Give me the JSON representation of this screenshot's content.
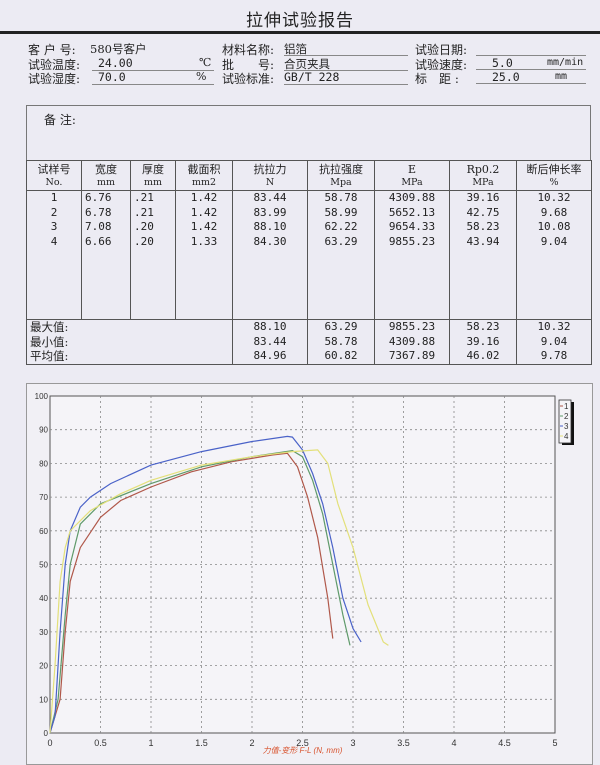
{
  "title": "拉伸试验报告",
  "info": {
    "customer_label": "客 户 号:",
    "customer": "580号客户",
    "material_label": "材料名称:",
    "material": "铝箔",
    "date_label": "试验日期:",
    "date": "",
    "temp_label": "试验温度:",
    "temp": "24.00",
    "temp_unit": "℃",
    "batch_label": "批　　号:",
    "batch": "合页夹具",
    "speed_label": "试验速度:",
    "speed": "5.0",
    "speed_unit": "mm/min",
    "humidity_label": "试验湿度:",
    "humidity": "70.0",
    "humidity_unit": "%",
    "standard_label": "试验标准:",
    "standard": "GB/T 228",
    "gauge_label": "标　距 :",
    "gauge": "25.0",
    "gauge_unit": "mm"
  },
  "remarks_label": "备 注:",
  "table": {
    "headers": [
      {
        "name": "试样号",
        "unit": "No."
      },
      {
        "name": "宽度",
        "unit": "mm"
      },
      {
        "name": "厚度",
        "unit": "mm"
      },
      {
        "name": "截面积",
        "unit": "mm2"
      },
      {
        "name": "抗拉力",
        "unit": "N"
      },
      {
        "name": "抗拉强度",
        "unit": "Mpa"
      },
      {
        "name": "E",
        "unit": "MPa"
      },
      {
        "name": "Rp0.2",
        "unit": "MPa"
      },
      {
        "name": "断后伸长率",
        "unit": "%"
      }
    ],
    "rows": [
      [
        "1",
        "6.76",
        ".21",
        "1.42",
        "83.44",
        "58.78",
        "4309.88",
        "39.16",
        "10.32"
      ],
      [
        "2",
        "6.78",
        ".21",
        "1.42",
        "83.99",
        "58.99",
        "5652.13",
        "42.75",
        "9.68"
      ],
      [
        "3",
        "7.08",
        ".20",
        "1.42",
        "88.10",
        "62.22",
        "9654.33",
        "58.23",
        "10.08"
      ],
      [
        "4",
        "6.66",
        ".20",
        "1.33",
        "84.30",
        "63.29",
        "9855.23",
        "43.94",
        "9.04"
      ]
    ],
    "stats": [
      {
        "label": "最大值:",
        "values": [
          "88.10",
          "63.29",
          "9855.23",
          "58.23",
          "10.32"
        ]
      },
      {
        "label": "最小值:",
        "values": [
          "83.44",
          "58.78",
          "4309.88",
          "39.16",
          "9.04"
        ]
      },
      {
        "label": "平均值:",
        "values": [
          "84.96",
          "60.82",
          "7367.89",
          "46.02",
          "9.78"
        ]
      }
    ]
  },
  "chart_data": {
    "type": "line",
    "xlabel": "力值-变形 F-L  (N, mm)",
    "ylabel": "",
    "xlim": [
      0,
      5
    ],
    "ylim": [
      0,
      100
    ],
    "xticks": [
      "0",
      "0.5",
      "1",
      "1.5",
      "2",
      "2.5",
      "3",
      "3.5",
      "4",
      "4.5",
      "5"
    ],
    "yticks": [
      "0",
      "10",
      "20",
      "30",
      "40",
      "50",
      "60",
      "70",
      "80",
      "90",
      "100"
    ],
    "grid": true,
    "legend": "top-right",
    "series": [
      {
        "name": "1",
        "color": "#b0584a",
        "x": [
          0,
          0.1,
          0.15,
          0.2,
          0.3,
          0.5,
          0.7,
          1,
          1.4,
          1.8,
          2.2,
          2.35,
          2.45,
          2.55,
          2.65,
          2.75,
          2.8
        ],
        "y": [
          0,
          10,
          30,
          45,
          55,
          64,
          69,
          73,
          77.5,
          80.5,
          82.5,
          83,
          79,
          70,
          58,
          40,
          28
        ]
      },
      {
        "name": "2",
        "color": "#5f9a6a",
        "x": [
          0,
          0.08,
          0.15,
          0.2,
          0.3,
          0.5,
          1,
          1.5,
          2,
          2.4,
          2.5,
          2.6,
          2.7,
          2.8,
          2.9,
          2.97
        ],
        "y": [
          0,
          10,
          35,
          50,
          62,
          68,
          74,
          79,
          82,
          83.8,
          82,
          75,
          65,
          50,
          35,
          26
        ]
      },
      {
        "name": "3",
        "color": "#4a62c8",
        "x": [
          0,
          0.05,
          0.1,
          0.15,
          0.2,
          0.3,
          0.4,
          0.6,
          1,
          1.5,
          2,
          2.35,
          2.4,
          2.5,
          2.6,
          2.7,
          2.8,
          2.9,
          3,
          3.08
        ],
        "y": [
          0,
          5,
          30,
          50,
          60,
          67,
          70,
          74,
          79.5,
          83.5,
          86.5,
          88,
          87.8,
          84,
          77,
          68,
          55,
          40,
          31,
          27
        ]
      },
      {
        "name": "4",
        "color": "#e3e07a",
        "x": [
          0,
          0.05,
          0.1,
          0.15,
          0.2,
          0.4,
          0.7,
          1,
          1.5,
          2,
          2.4,
          2.65,
          2.75,
          2.85,
          3,
          3.15,
          3.3,
          3.35
        ],
        "y": [
          0,
          20,
          45,
          55,
          60,
          66,
          71,
          75,
          79.5,
          82,
          83.5,
          84,
          80,
          68,
          55,
          38,
          27,
          26
        ]
      }
    ]
  }
}
